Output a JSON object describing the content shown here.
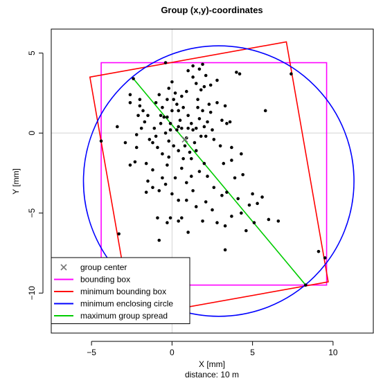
{
  "chart_data": {
    "type": "scatter",
    "title": "Group (x,y)-coordinates",
    "xlabel": "X [mm]",
    "subtitle": "distance: 10 m",
    "ylabel": "Y [mm]",
    "xlim": [
      -7.5,
      12.5
    ],
    "ylim": [
      -12.5,
      6.5
    ],
    "xticks": [
      -5,
      0,
      5,
      10
    ],
    "yticks": [
      -10,
      -5,
      0,
      5
    ],
    "grid_lines": {
      "x": 0,
      "y": 0
    },
    "legend_position": "bottom-left",
    "colors": {
      "points": "#000000",
      "group_center": "#777777",
      "bounding_box": "#ff00ff",
      "min_bounding_box": "#ff0000",
      "min_enclosing_circle": "#0000ff",
      "max_group_spread": "#00cc00",
      "grid": "#d3d3d3"
    },
    "legend": [
      {
        "label": "group center",
        "key": "group_center",
        "symbol": "x"
      },
      {
        "label": "bounding box",
        "key": "bounding_box",
        "symbol": "line"
      },
      {
        "label": "minimum bounding box",
        "key": "min_bounding_box",
        "symbol": "line"
      },
      {
        "label": "minimum enclosing circle",
        "key": "min_enclosing_circle",
        "symbol": "line"
      },
      {
        "label": "maximum group spread",
        "key": "max_group_spread",
        "symbol": "line"
      }
    ],
    "group_center": {
      "x": 0.8,
      "y": -0.4
    },
    "bounding_box": {
      "xmin": -4.4,
      "xmax": 9.6,
      "ymin": -9.5,
      "ymax": 4.4
    },
    "min_bounding_box": [
      [
        -5.1,
        3.5
      ],
      [
        7.1,
        5.7
      ],
      [
        9.7,
        -9.3
      ],
      [
        -2.5,
        -11.5
      ]
    ],
    "min_enclosing_circle": {
      "cx": 2.9,
      "cy": -3.0,
      "r": 8.4
    },
    "max_group_spread": [
      [
        -2.4,
        3.4
      ],
      [
        8.3,
        -9.5
      ]
    ],
    "points": [
      [
        -2.4,
        3.4
      ],
      [
        8.3,
        -9.5
      ],
      [
        9.5,
        -7.8
      ],
      [
        -4.4,
        -0.5
      ],
      [
        -0.4,
        4.4
      ],
      [
        7.4,
        3.7
      ],
      [
        9.1,
        -7.4
      ],
      [
        -3.4,
        0.4
      ],
      [
        -2.9,
        -0.6
      ],
      [
        -2.3,
        -1.8
      ],
      [
        -2.6,
        -2.0
      ],
      [
        -1.6,
        -1.9
      ],
      [
        -2.2,
        -0.9
      ],
      [
        -2.6,
        2.4
      ],
      [
        -2.0,
        2.1
      ],
      [
        -1.8,
        1.4
      ],
      [
        -1.5,
        1.1
      ],
      [
        -1.0,
        1.9
      ],
      [
        -0.8,
        2.4
      ],
      [
        -0.6,
        1.6
      ],
      [
        -0.3,
        1.0
      ],
      [
        -0.7,
        0.6
      ],
      [
        -0.4,
        0.0
      ],
      [
        -0.2,
        -0.5
      ],
      [
        0.1,
        -0.8
      ],
      [
        0.3,
        0.2
      ],
      [
        0.5,
        0.8
      ],
      [
        0.0,
        1.4
      ],
      [
        0.3,
        1.8
      ],
      [
        0.6,
        2.3
      ],
      [
        -0.2,
        2.8
      ],
      [
        0.0,
        3.2
      ],
      [
        0.2,
        2.5
      ],
      [
        0.9,
        2.6
      ],
      [
        0.7,
        1.6
      ],
      [
        1.0,
        1.1
      ],
      [
        1.2,
        0.6
      ],
      [
        1.3,
        0.2
      ],
      [
        1.4,
        -0.6
      ],
      [
        1.1,
        -1.2
      ],
      [
        0.7,
        -1.6
      ],
      [
        0.4,
        -1.1
      ],
      [
        0.9,
        -0.3
      ],
      [
        1.5,
        0.3
      ],
      [
        1.8,
        -0.2
      ],
      [
        1.7,
        0.9
      ],
      [
        1.9,
        1.4
      ],
      [
        2.2,
        0.7
      ],
      [
        2.5,
        0.2
      ],
      [
        2.6,
        -0.4
      ],
      [
        2.4,
        1.3
      ],
      [
        2.3,
        1.8
      ],
      [
        1.6,
        2.1
      ],
      [
        1.8,
        2.7
      ],
      [
        1.5,
        3.1
      ],
      [
        1.3,
        3.5
      ],
      [
        1.0,
        3.9
      ],
      [
        1.3,
        4.2
      ],
      [
        1.7,
        4.0
      ],
      [
        2.1,
        3.6
      ],
      [
        1.9,
        4.3
      ],
      [
        2.0,
        2.9
      ],
      [
        2.4,
        3.0
      ],
      [
        2.8,
        1.9
      ],
      [
        3.1,
        0.8
      ],
      [
        3.4,
        0.6
      ],
      [
        3.3,
        1.7
      ],
      [
        2.8,
        3.3
      ],
      [
        3.6,
        0.7
      ],
      [
        3.7,
        -1.7
      ],
      [
        3.2,
        -1.9
      ],
      [
        4.4,
        -2.6
      ],
      [
        3.9,
        -2.8
      ],
      [
        3.4,
        -3.7
      ],
      [
        3.1,
        -3.9
      ],
      [
        2.6,
        -3.4
      ],
      [
        2.2,
        -2.7
      ],
      [
        2.0,
        -1.9
      ],
      [
        1.7,
        -2.4
      ],
      [
        1.2,
        -2.7
      ],
      [
        0.9,
        -3.1
      ],
      [
        0.6,
        -2.2
      ],
      [
        0.2,
        -2.8
      ],
      [
        -0.3,
        -2.0
      ],
      [
        -0.6,
        -2.8
      ],
      [
        -1.2,
        -2.3
      ],
      [
        -1.5,
        -3.0
      ],
      [
        -1.2,
        -3.4
      ],
      [
        -1.6,
        -3.7
      ],
      [
        -0.8,
        -3.6
      ],
      [
        -0.4,
        -3.2
      ],
      [
        0.0,
        -3.8
      ],
      [
        0.4,
        -4.2
      ],
      [
        0.9,
        -4.2
      ],
      [
        1.3,
        -3.6
      ],
      [
        1.5,
        -4.6
      ],
      [
        1.9,
        -5.5
      ],
      [
        2.1,
        -4.3
      ],
      [
        2.5,
        -4.8
      ],
      [
        2.8,
        -5.6
      ],
      [
        3.3,
        -5.8
      ],
      [
        3.7,
        -5.2
      ],
      [
        4.3,
        -5.0
      ],
      [
        4.1,
        -4.1
      ],
      [
        4.8,
        -4.5
      ],
      [
        5.3,
        -4.4
      ],
      [
        5.6,
        -4.0
      ],
      [
        5.0,
        -3.8
      ],
      [
        5.1,
        -5.6
      ],
      [
        4.6,
        -6.1
      ],
      [
        6.0,
        -5.4
      ],
      [
        6.6,
        -5.5
      ],
      [
        4.2,
        3.7
      ],
      [
        4.0,
        3.8
      ],
      [
        5.8,
        1.4
      ],
      [
        4.3,
        -1.3
      ],
      [
        3.7,
        -0.9
      ],
      [
        3.0,
        -0.8
      ],
      [
        2.1,
        -0.2
      ],
      [
        2.0,
        0.4
      ],
      [
        1.6,
        1.6
      ],
      [
        1.0,
        0.3
      ],
      [
        0.4,
        0.4
      ],
      [
        -0.1,
        0.6
      ],
      [
        -0.5,
        1.0
      ],
      [
        -1.1,
        0.3
      ],
      [
        -1.4,
        -0.4
      ],
      [
        -1.9,
        0.3
      ],
      [
        -2.1,
        1.1
      ],
      [
        -1.7,
        0.7
      ],
      [
        -1.2,
        -0.6
      ],
      [
        -0.9,
        -0.9
      ],
      [
        -0.6,
        -1.3
      ],
      [
        -0.2,
        -1.5
      ],
      [
        -0.1,
        0.2
      ],
      [
        -0.3,
        2.1
      ],
      [
        0.1,
        2.1
      ],
      [
        0.4,
        1.4
      ],
      [
        0.6,
        0.3
      ],
      [
        0.8,
        -0.8
      ],
      [
        1.2,
        -1.6
      ],
      [
        1.5,
        -1.1
      ],
      [
        -2.6,
        1.9
      ],
      [
        -2.0,
        1.7
      ],
      [
        0.6,
        -5.3
      ],
      [
        0.4,
        -5.5
      ],
      [
        -0.9,
        -5.3
      ],
      [
        -0.1,
        -5.3
      ],
      [
        -0.3,
        -5.6
      ],
      [
        1.0,
        -6.2
      ],
      [
        -0.8,
        -6.7
      ],
      [
        -3.3,
        -6.3
      ],
      [
        3.3,
        -7.3
      ],
      [
        -2.2,
        -0.1
      ],
      [
        -1.0,
        -0.2
      ],
      [
        -0.7,
        1.1
      ]
    ]
  }
}
